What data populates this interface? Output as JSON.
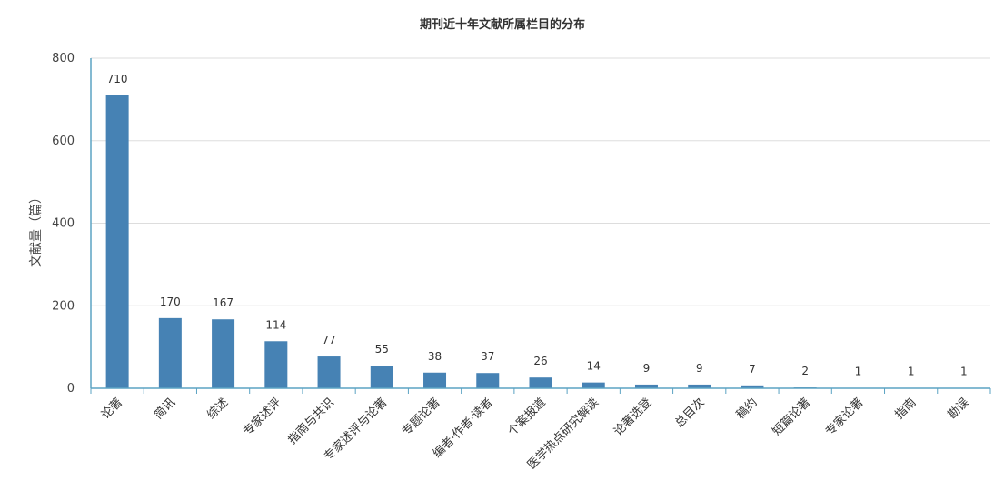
{
  "chart_data": {
    "type": "bar",
    "title": "期刊近十年文献所属栏目的分布",
    "ylabel": "文献量（篇）",
    "xlabel": "",
    "ylim": [
      0,
      800
    ],
    "yticks": [
      0,
      200,
      400,
      600,
      800
    ],
    "grid": true,
    "categories": [
      "论著",
      "简讯",
      "综述",
      "专家述评",
      "指南与共识",
      "专家述评与论著",
      "专题论著",
      "编者·作者·读者",
      "个案报道",
      "医学热点研究解读",
      "论著选登",
      "总目次",
      "稿约",
      "短篇论著",
      "专家论著",
      "指南",
      "勘误"
    ],
    "values": [
      710,
      170,
      167,
      114,
      77,
      55,
      38,
      37,
      26,
      14,
      9,
      9,
      7,
      2,
      1,
      1,
      1
    ],
    "bar_color": "#4682b4",
    "axis_color": "#5ba3c3",
    "grid_color": "#dddddd"
  }
}
